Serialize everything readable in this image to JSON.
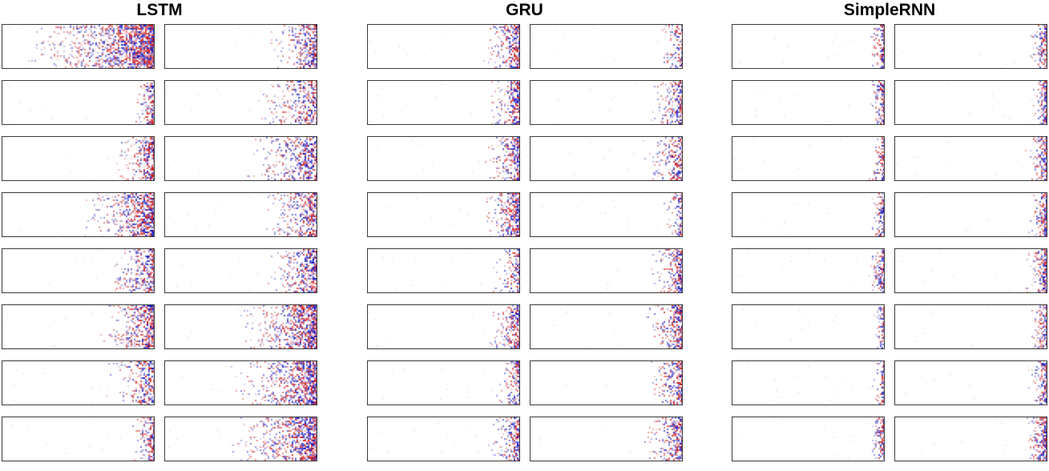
{
  "chart_data": {
    "type": "heatmap",
    "title": "",
    "layout": {
      "panel_rows": 8,
      "panel_cols": 2,
      "grid": false,
      "axes_labels_visible": false
    },
    "colors": {
      "positive": "#cc0000",
      "negative": "#0000be",
      "background": "#ffffff",
      "panel_border": "#3a3a3a",
      "title_color": "#000000"
    },
    "groups": [
      {
        "title": "LSTM",
        "panels": [
          {
            "spread": 0.8,
            "density": 1.0
          },
          {
            "spread": 0.3,
            "density": 0.8
          },
          {
            "spread": 0.15,
            "density": 0.7
          },
          {
            "spread": 0.4,
            "density": 0.6
          },
          {
            "spread": 0.25,
            "density": 0.8
          },
          {
            "spread": 0.5,
            "density": 0.6
          },
          {
            "spread": 0.45,
            "density": 0.9
          },
          {
            "spread": 0.35,
            "density": 0.7
          },
          {
            "spread": 0.3,
            "density": 0.8
          },
          {
            "spread": 0.35,
            "density": 0.8
          },
          {
            "spread": 0.35,
            "density": 0.8
          },
          {
            "spread": 0.5,
            "density": 0.9
          },
          {
            "spread": 0.3,
            "density": 0.6
          },
          {
            "spread": 0.55,
            "density": 0.9
          },
          {
            "spread": 0.15,
            "density": 0.7
          },
          {
            "spread": 0.55,
            "density": 0.9
          }
        ]
      },
      {
        "title": "GRU",
        "panels": [
          {
            "spread": 0.25,
            "density": 0.8
          },
          {
            "spread": 0.15,
            "density": 0.6
          },
          {
            "spread": 0.2,
            "density": 0.8
          },
          {
            "spread": 0.2,
            "density": 0.7
          },
          {
            "spread": 0.22,
            "density": 0.8
          },
          {
            "spread": 0.25,
            "density": 0.7
          },
          {
            "spread": 0.25,
            "density": 0.9
          },
          {
            "spread": 0.12,
            "density": 0.6
          },
          {
            "spread": 0.18,
            "density": 0.7
          },
          {
            "spread": 0.22,
            "density": 0.8
          },
          {
            "spread": 0.2,
            "density": 0.8
          },
          {
            "spread": 0.25,
            "density": 0.8
          },
          {
            "spread": 0.15,
            "density": 0.7
          },
          {
            "spread": 0.22,
            "density": 0.8
          },
          {
            "spread": 0.2,
            "density": 0.8
          },
          {
            "spread": 0.25,
            "density": 0.9
          }
        ]
      },
      {
        "title": "SimpleRNN",
        "panels": [
          {
            "spread": 0.1,
            "density": 0.9
          },
          {
            "spread": 0.12,
            "density": 0.8
          },
          {
            "spread": 0.1,
            "density": 0.9
          },
          {
            "spread": 0.1,
            "density": 0.9
          },
          {
            "spread": 0.1,
            "density": 0.8
          },
          {
            "spread": 0.14,
            "density": 0.9
          },
          {
            "spread": 0.1,
            "density": 0.9
          },
          {
            "spread": 0.12,
            "density": 0.9
          },
          {
            "spread": 0.1,
            "density": 0.8
          },
          {
            "spread": 0.14,
            "density": 0.9
          },
          {
            "spread": 0.08,
            "density": 0.8
          },
          {
            "spread": 0.12,
            "density": 0.9
          },
          {
            "spread": 0.08,
            "density": 0.7
          },
          {
            "spread": 0.12,
            "density": 0.8
          },
          {
            "spread": 0.1,
            "density": 0.9
          },
          {
            "spread": 0.14,
            "density": 0.9
          }
        ]
      }
    ]
  }
}
